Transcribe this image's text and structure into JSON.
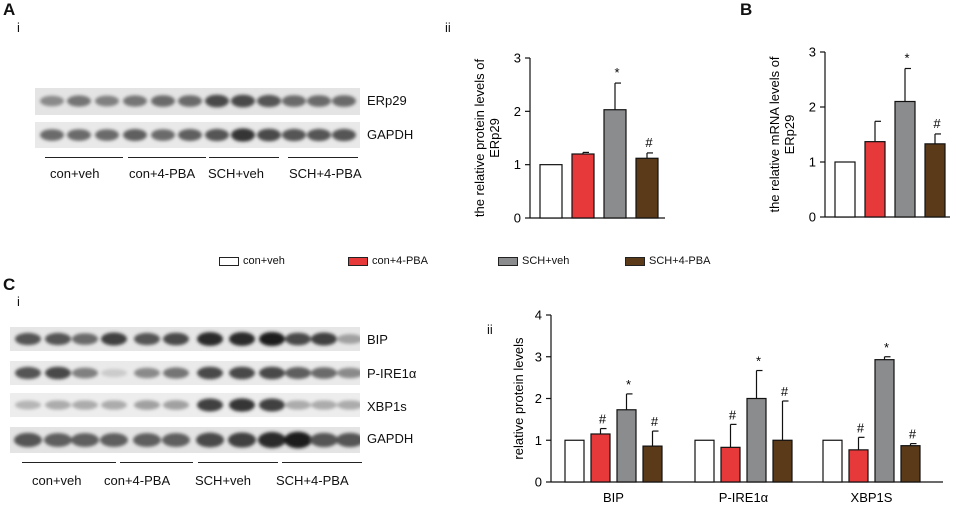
{
  "panels": {
    "A": "A",
    "A_i": "i",
    "A_ii": "ii",
    "B": "B",
    "C": "C",
    "C_i": "i",
    "C_ii": "ii"
  },
  "colors": {
    "con_veh": "#ffffff",
    "con_pba": "#e8393a",
    "sch_veh": "#8b8c8e",
    "sch_pba": "#5b3a1a"
  },
  "blotA": {
    "bands": [
      "ERp29",
      "GAPDH"
    ],
    "groups": [
      "con+veh",
      "con+4-PBA",
      "SCH+veh",
      "SCH+4-PBA"
    ]
  },
  "blotC": {
    "bands": [
      "BIP",
      "P-IRE1α",
      "XBP1s",
      "GAPDH"
    ],
    "groups": [
      "con+veh",
      "con+4-PBA",
      "SCH+veh",
      "SCH+4-PBA"
    ]
  },
  "legend": [
    "con+veh",
    "con+4-PBA",
    "SCH+veh",
    "SCH+4-PBA"
  ],
  "chart_data": [
    {
      "type": "bar",
      "panel": "A-ii",
      "ylabel": "the relative protein levels of ERp29",
      "ylim": [
        0,
        3
      ],
      "yticks": [
        "0",
        "1",
        "2",
        "3"
      ],
      "categories": [
        "con+veh",
        "con+4-PBA",
        "SCH+veh",
        "SCH+4-PBA"
      ],
      "values": [
        1.0,
        1.2,
        2.03,
        1.12
      ],
      "errors": [
        0,
        0.03,
        0.5,
        0.1
      ],
      "annotations": [
        "",
        "",
        "*",
        "#"
      ]
    },
    {
      "type": "bar",
      "panel": "B",
      "ylabel": "the relative mRNA levels of ERp29",
      "ylim": [
        0,
        3
      ],
      "yticks": [
        "0",
        "1",
        "2",
        "3"
      ],
      "categories": [
        "con+veh",
        "con+4-PBA",
        "SCH+veh",
        "SCH+4-PBA"
      ],
      "values": [
        1.0,
        1.37,
        2.1,
        1.33
      ],
      "errors": [
        0,
        0.37,
        0.6,
        0.18
      ],
      "annotations": [
        "",
        "",
        "*",
        "#"
      ]
    },
    {
      "type": "bar",
      "panel": "C-ii",
      "ylabel": "relative protein levels",
      "ylim": [
        0,
        4
      ],
      "yticks": [
        "0",
        "1",
        "2",
        "3",
        "4"
      ],
      "categories": [
        "BIP",
        "P-IRE1α",
        "XBP1S"
      ],
      "series": [
        {
          "name": "con+veh",
          "values": [
            1.0,
            1.0,
            1.0
          ],
          "errors": [
            0,
            0,
            0
          ],
          "annotations": [
            "",
            "",
            ""
          ]
        },
        {
          "name": "con+4-PBA",
          "values": [
            1.15,
            0.83,
            0.77
          ],
          "errors": [
            0.13,
            0.55,
            0.3
          ],
          "annotations": [
            "#",
            "#",
            "#"
          ]
        },
        {
          "name": "SCH+veh",
          "values": [
            1.73,
            2.0,
            2.93
          ],
          "errors": [
            0.38,
            0.67,
            0.07
          ],
          "annotations": [
            "*",
            "*",
            "*"
          ]
        },
        {
          "name": "SCH+4-PBA",
          "values": [
            0.86,
            1.0,
            0.87
          ],
          "errors": [
            0.36,
            0.94,
            0.05
          ],
          "annotations": [
            "#",
            "#",
            "#"
          ]
        }
      ]
    }
  ]
}
